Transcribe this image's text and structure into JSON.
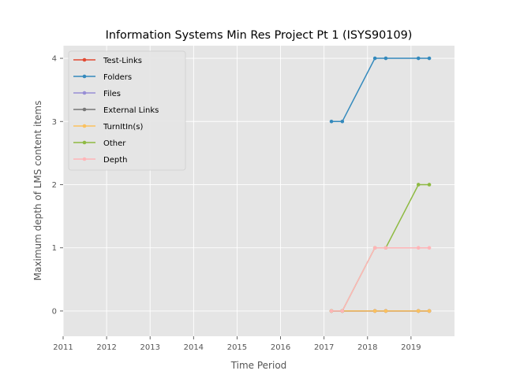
{
  "chart_data": {
    "type": "line",
    "title": "Information Systems Min Res Project Pt 1 (ISYS90109)",
    "xlabel": "Time Period",
    "ylabel": "Maximum depth of LMS content items",
    "xlim": [
      2011,
      2020
    ],
    "ylim": [
      -0.4,
      4.2
    ],
    "x_ticks": [
      "2011",
      "2012",
      "2013",
      "2014",
      "2015",
      "2016",
      "2017",
      "2018",
      "2019"
    ],
    "y_ticks": [
      "0",
      "1",
      "2",
      "3",
      "4"
    ],
    "grid": true,
    "legend_position": "top-left",
    "x": [
      2017.17,
      2017.42,
      2018.17,
      2018.42,
      2019.17,
      2019.42
    ],
    "series": [
      {
        "name": "Test-Links",
        "color": "#e24a33",
        "values": [
          0,
          0,
          0,
          0,
          0,
          0
        ]
      },
      {
        "name": "Folders",
        "color": "#348abd",
        "values": [
          3,
          3,
          4,
          4,
          4,
          4
        ]
      },
      {
        "name": "Files",
        "color": "#988ed5",
        "values": [
          0,
          0,
          0,
          0,
          0,
          0
        ]
      },
      {
        "name": "External Links",
        "color": "#777777",
        "values": [
          0,
          0,
          0,
          0,
          0,
          0
        ]
      },
      {
        "name": "TurnItIn(s)",
        "color": "#fbc15e",
        "values": [
          0,
          0,
          0,
          0,
          0,
          0
        ]
      },
      {
        "name": "Other",
        "color": "#8eba42",
        "values": [
          0,
          0,
          1,
          1,
          2,
          2
        ]
      },
      {
        "name": "Depth",
        "color": "#ffb5b8",
        "values": [
          0,
          0,
          1,
          1,
          1,
          1
        ]
      }
    ]
  }
}
